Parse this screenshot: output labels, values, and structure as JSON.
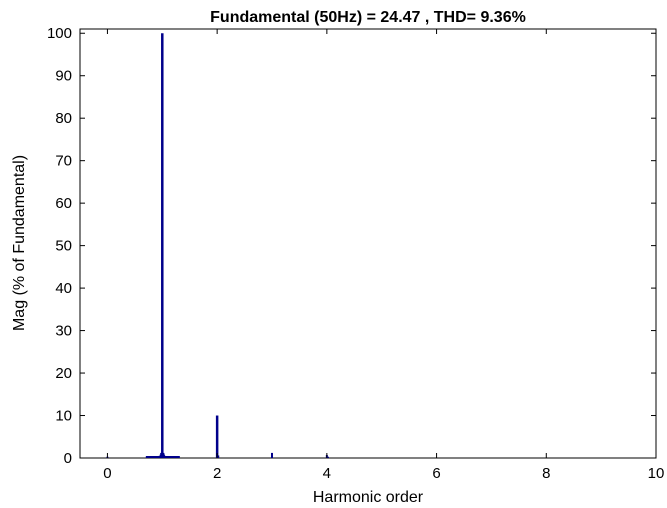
{
  "chart_data": {
    "type": "bar",
    "title": "Fundamental (50Hz) = 24.47 , THD= 9.36%",
    "xlabel": "Harmonic order",
    "ylabel": "Mag (% of Fundamental)",
    "xlim": [
      -0.5,
      10
    ],
    "ylim": [
      0,
      101
    ],
    "xticks": [
      0,
      2,
      4,
      6,
      8,
      10
    ],
    "yticks": [
      0,
      10,
      20,
      30,
      40,
      50,
      60,
      70,
      80,
      90,
      100
    ],
    "grid": false,
    "legend": "none",
    "series_color": "#00008b",
    "series": [
      {
        "x": [
          0,
          0.72,
          0.78,
          0.84,
          0.88,
          0.92,
          0.95,
          0.97,
          0.98,
          1.0,
          1.02,
          1.03,
          1.05,
          1.08,
          1.12,
          1.16,
          1.22,
          1.28,
          2.0,
          2.02,
          3.0,
          4.0,
          4.02
        ],
        "values": [
          0.3,
          0.2,
          0.2,
          0.3,
          0.3,
          0.4,
          0.5,
          0.8,
          1.2,
          100,
          1.2,
          0.8,
          0.5,
          0.4,
          0.3,
          0.3,
          0.2,
          0.2,
          10,
          0.6,
          1.2,
          0.7,
          0.3
        ]
      }
    ]
  }
}
